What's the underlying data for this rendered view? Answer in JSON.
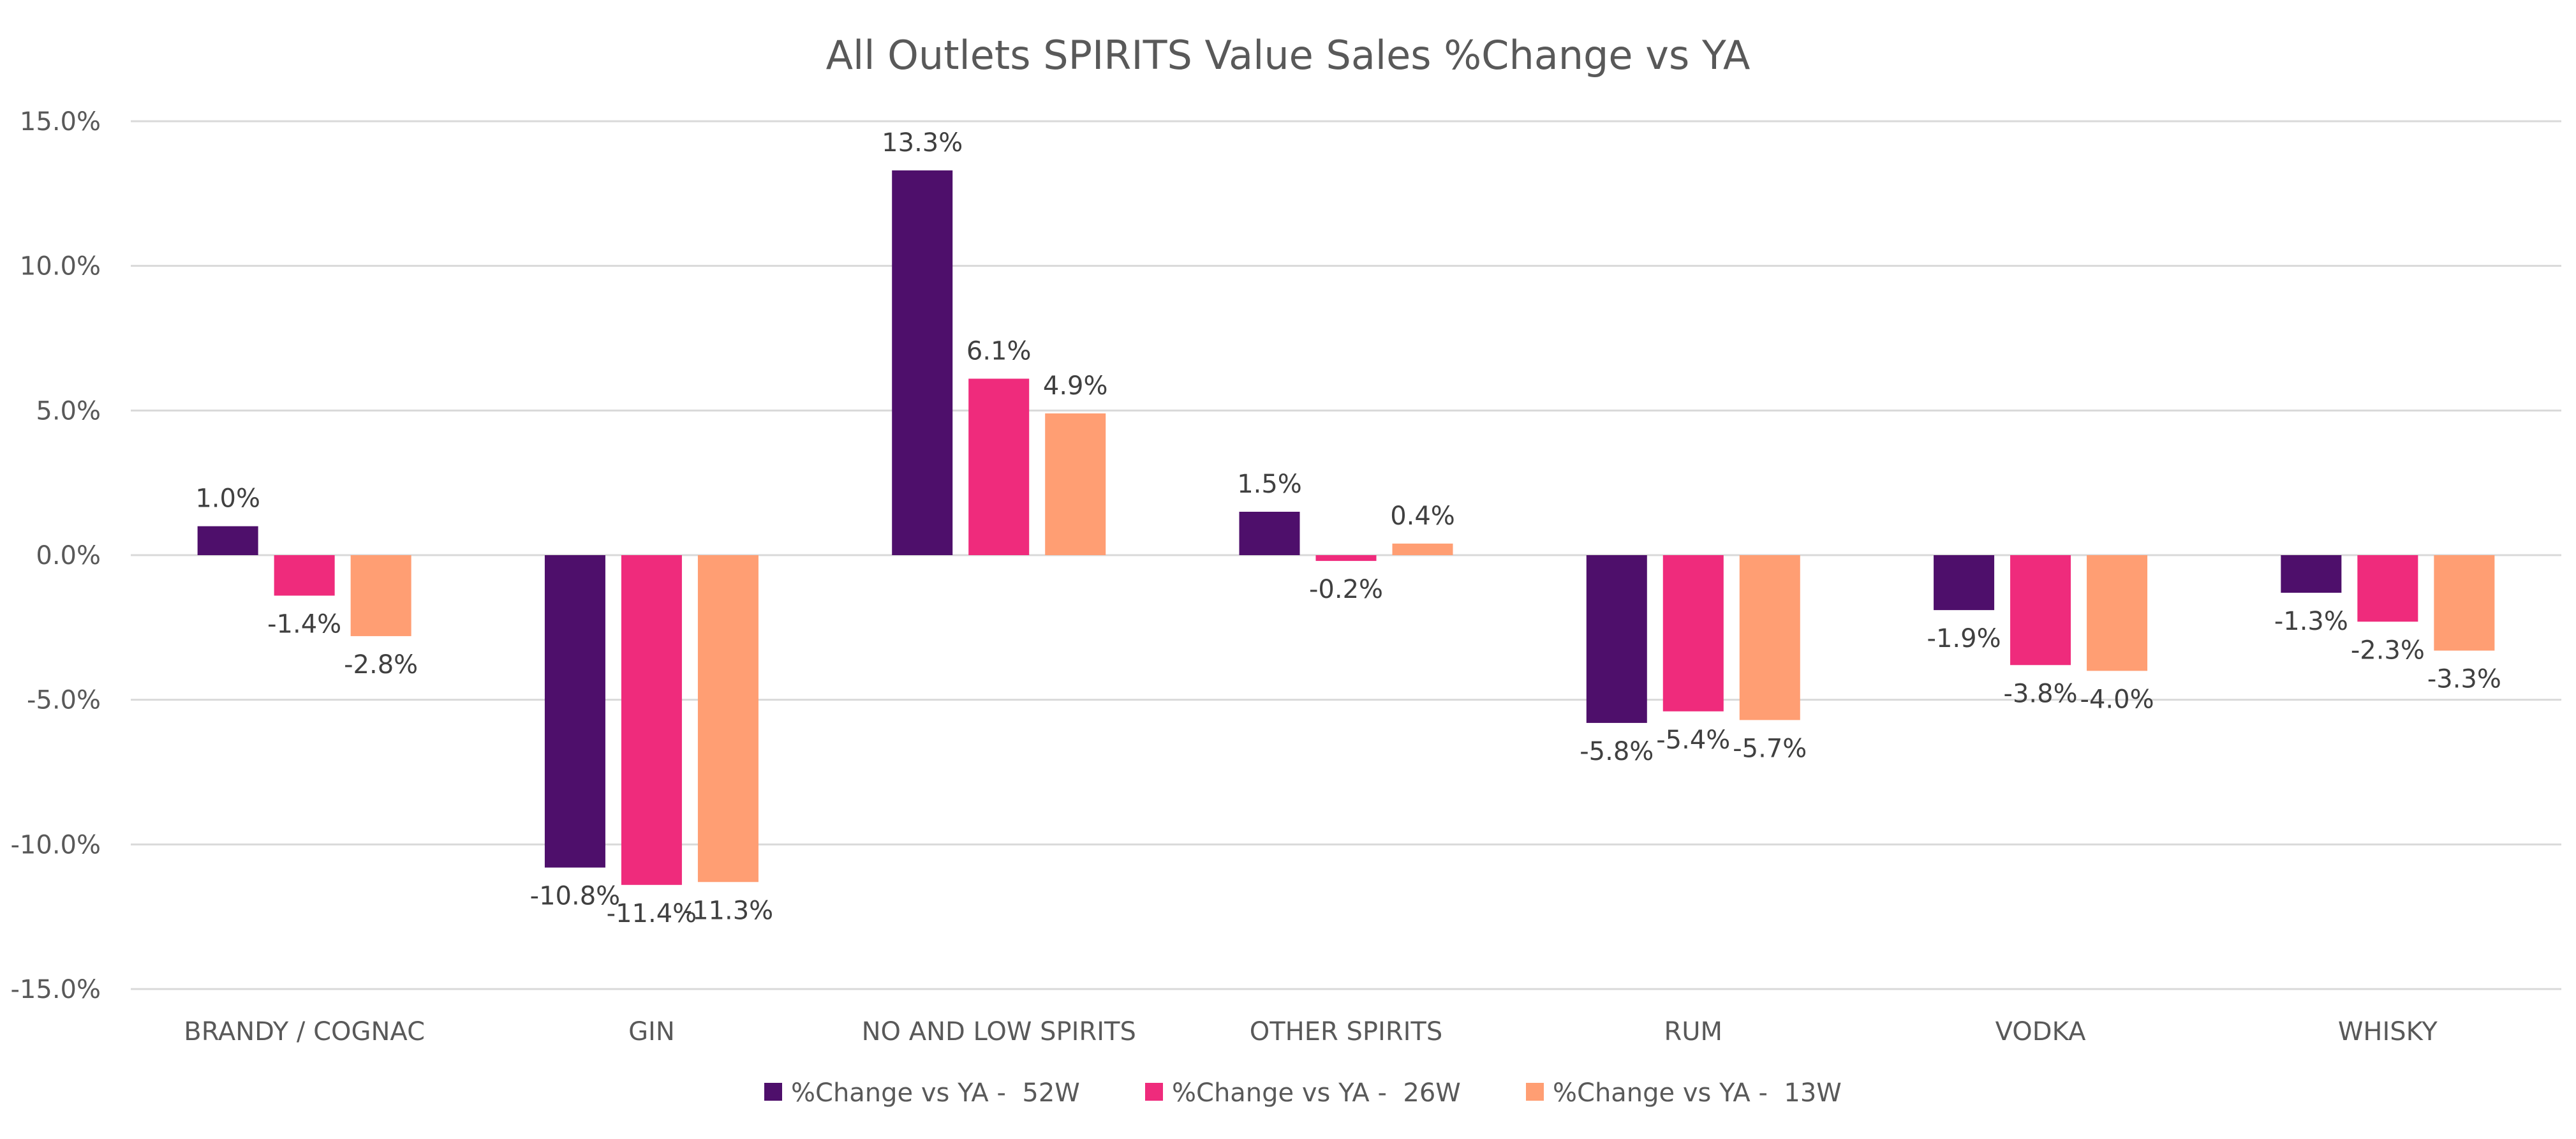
{
  "chart_data": {
    "type": "bar",
    "title": "All Outlets SPIRITS Value Sales %Change vs YA",
    "xlabel": "",
    "ylabel": "",
    "ylim": [
      -15,
      15
    ],
    "y_ticks": [
      15,
      10,
      5,
      0,
      -5,
      -10,
      -15
    ],
    "y_tick_labels": [
      "15.0%",
      "10.0%",
      "5.0%",
      "0.0%",
      "-5.0%",
      "-10.0%",
      "-15.0%"
    ],
    "grid": true,
    "legend_position": "bottom",
    "categories": [
      "BRANDY / COGNAC",
      "GIN",
      "NO AND LOW SPIRITS",
      "OTHER SPIRITS",
      "RUM",
      "VODKA",
      "WHISKY"
    ],
    "series": [
      {
        "name": "%Change vs YA -  52W",
        "color": "#4e0f6b",
        "values": [
          1.0,
          -10.8,
          13.3,
          1.5,
          -5.8,
          -1.9,
          -1.3
        ],
        "labels": [
          "1.0%",
          "-10.8%",
          "13.3%",
          "1.5%",
          "-5.8%",
          "-1.9%",
          "-1.3%"
        ]
      },
      {
        "name": "%Change vs YA -  26W",
        "color": "#ef2b7c",
        "values": [
          -1.4,
          -11.4,
          6.1,
          -0.2,
          -5.4,
          -3.8,
          -2.3
        ],
        "labels": [
          "-1.4%",
          "-11.4%",
          "6.1%",
          "-0.2%",
          "-5.4%",
          "-3.8%",
          "-2.3%"
        ]
      },
      {
        "name": "%Change vs YA -  13W",
        "color": "#ff9e73",
        "values": [
          -2.8,
          -11.3,
          4.9,
          0.4,
          -5.7,
          -4.0,
          -3.3
        ],
        "labels": [
          "-2.8%",
          "-11.3%",
          "4.9%",
          "0.4%",
          "-5.7%",
          "-4.0%",
          "-3.3%"
        ]
      }
    ]
  }
}
